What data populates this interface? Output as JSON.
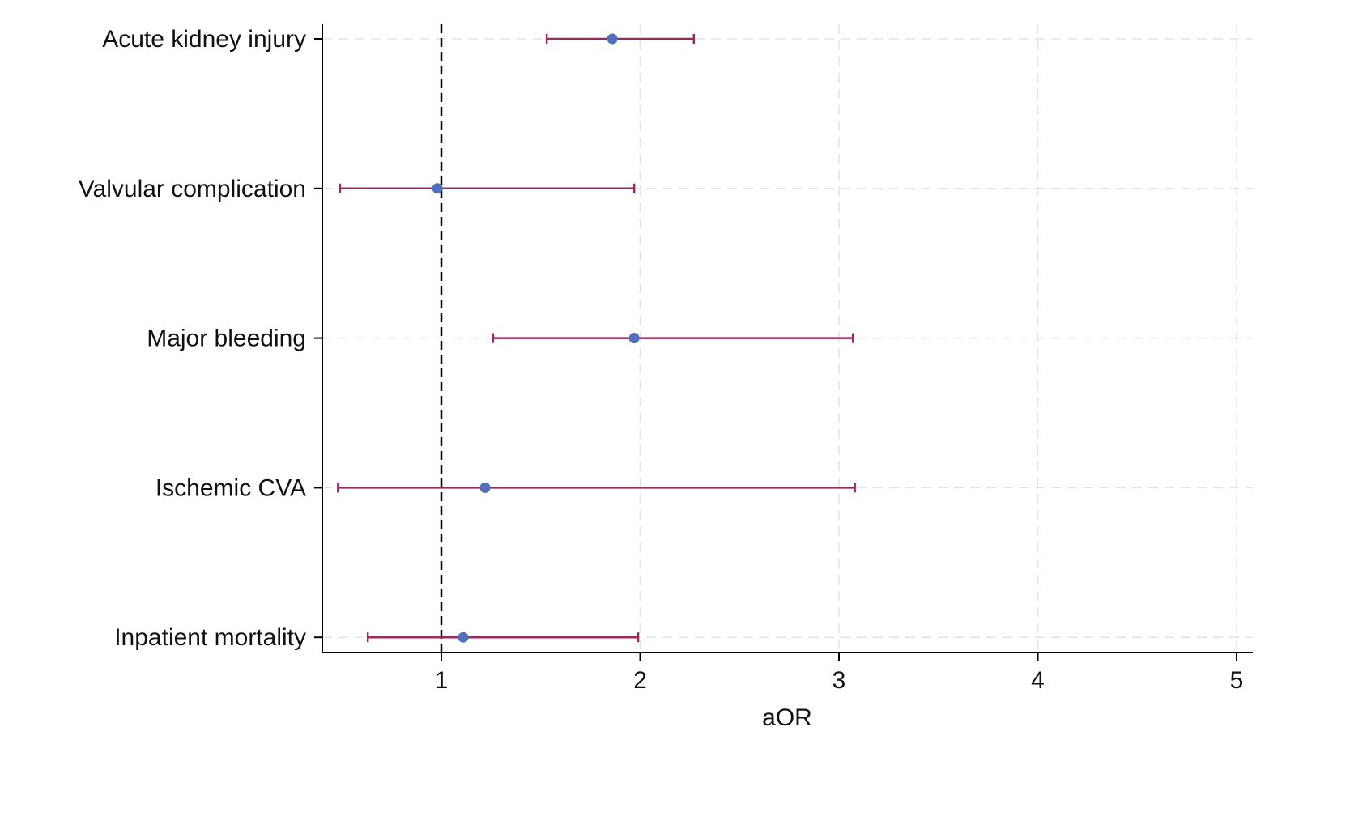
{
  "chart_data": {
    "type": "forest",
    "title": "",
    "xlabel": "aOR",
    "ylabel": "",
    "xlim": [
      0.4,
      5.05
    ],
    "xticks": [
      1,
      2,
      3,
      4,
      5
    ],
    "xtick_labels": [
      "1",
      "2",
      "3",
      "4",
      "5"
    ],
    "reference_line": 1,
    "grid": true,
    "categories": [
      "Acute kidney injury",
      "Valvular complication",
      "Major bleeding",
      "Ischemic CVA",
      "Inpatient mortality"
    ],
    "estimates": [
      1.86,
      0.98,
      1.97,
      1.22,
      1.11
    ],
    "ci_lower": [
      1.53,
      0.49,
      1.26,
      0.48,
      0.63
    ],
    "ci_upper": [
      2.27,
      1.97,
      3.07,
      3.08,
      1.99
    ],
    "colors": {
      "point": "#4f6fc0",
      "ci": "#9b2a5a",
      "grid": "#e3e3e3",
      "axis": "#000000"
    }
  }
}
